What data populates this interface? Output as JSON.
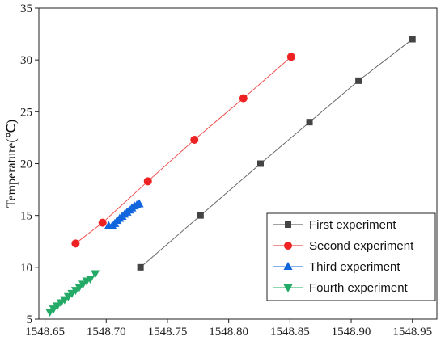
{
  "chart_data": {
    "type": "line",
    "xlabel": "",
    "ylabel": "Temperature(℃)",
    "xlim": [
      1548.645,
      1548.97
    ],
    "ylim": [
      5,
      35
    ],
    "xticks": [
      1548.65,
      1548.7,
      1548.75,
      1548.8,
      1548.85,
      1548.9,
      1548.95
    ],
    "xtick_labels": [
      "1548.65",
      "1548.70",
      "1548.75",
      "1548.80",
      "1548.85",
      "1548.90",
      "1548.95"
    ],
    "yticks": [
      5,
      10,
      15,
      20,
      25,
      30,
      35
    ],
    "ytick_labels": [
      "5",
      "10",
      "15",
      "20",
      "25",
      "30",
      "35"
    ],
    "grid": false,
    "legend_position": "bottom-right",
    "series": [
      {
        "name": "First experiment",
        "color": "#444444",
        "marker": "square",
        "points": [
          [
            1548.728,
            10
          ],
          [
            1548.777,
            15
          ],
          [
            1548.826,
            20
          ],
          [
            1548.866,
            24
          ],
          [
            1548.906,
            28
          ],
          [
            1548.95,
            32
          ]
        ]
      },
      {
        "name": "Second experiment",
        "color": "#ee2222",
        "marker": "circle",
        "points": [
          [
            1548.675,
            12.3
          ],
          [
            1548.697,
            14.3
          ],
          [
            1548.734,
            18.3
          ],
          [
            1548.772,
            22.3
          ],
          [
            1548.812,
            26.3
          ],
          [
            1548.851,
            30.3
          ]
        ]
      },
      {
        "name": "Third experiment",
        "color": "#1166dd",
        "marker": "triangle-up",
        "points": [
          [
            1548.702,
            14.0
          ],
          [
            1548.705,
            14.0
          ],
          [
            1548.707,
            14.2
          ],
          [
            1548.709,
            14.5
          ],
          [
            1548.711,
            14.7
          ],
          [
            1548.713,
            14.9
          ],
          [
            1548.715,
            15.1
          ],
          [
            1548.717,
            15.3
          ],
          [
            1548.719,
            15.5
          ],
          [
            1548.721,
            15.7
          ],
          [
            1548.723,
            15.9
          ],
          [
            1548.725,
            16.0
          ],
          [
            1548.727,
            16.1
          ]
        ]
      },
      {
        "name": "Fourth experiment",
        "color": "#22aa66",
        "marker": "triangle-down",
        "points": [
          [
            1548.654,
            5.7
          ],
          [
            1548.657,
            6.0
          ],
          [
            1548.66,
            6.3
          ],
          [
            1548.663,
            6.6
          ],
          [
            1548.666,
            6.9
          ],
          [
            1548.669,
            7.2
          ],
          [
            1548.672,
            7.5
          ],
          [
            1548.675,
            7.8
          ],
          [
            1548.678,
            8.1
          ],
          [
            1548.681,
            8.4
          ],
          [
            1548.684,
            8.7
          ],
          [
            1548.687,
            8.9
          ],
          [
            1548.691,
            9.4
          ]
        ]
      }
    ]
  }
}
